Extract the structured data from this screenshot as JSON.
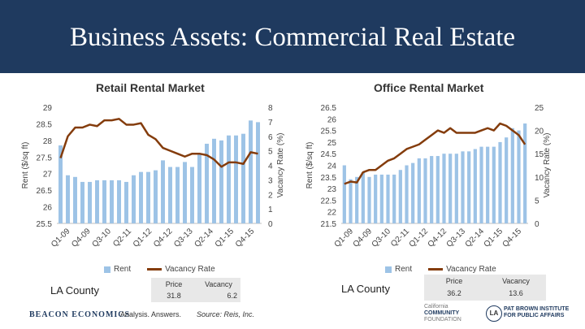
{
  "page": {
    "title": "Business Assets: Commercial Real Estate"
  },
  "legend": {
    "rent_label": "Rent",
    "vacancy_label": "Vacancy Rate"
  },
  "colors": {
    "bar": "#9dc3e6",
    "line": "#843c0c",
    "header": "#1f3a5f"
  },
  "chart_data": [
    {
      "type": "bar+line",
      "title": "Retail Rental Market",
      "ylabel": "Rent ($/sq ft)",
      "y2label": "Vacancy Rate (%)",
      "ylim": [
        25.5,
        29
      ],
      "y2lim": [
        0,
        8
      ],
      "yticks": [
        "29",
        "28.5",
        "28",
        "27.5",
        "27",
        "26.5",
        "26",
        "25.5"
      ],
      "y2ticks": [
        "8",
        "7",
        "6",
        "5",
        "4",
        "3",
        "2",
        "1",
        "0"
      ],
      "tick_labels": [
        "Q1-09",
        "Q4-09",
        "Q3-10",
        "Q2-11",
        "Q1-12",
        "Q4-12",
        "Q3-13",
        "Q2-14",
        "Q1-15",
        "Q4-15"
      ],
      "series": [
        {
          "name": "Rent",
          "values": [
            27.85,
            26.95,
            26.9,
            26.75,
            26.75,
            26.8,
            26.8,
            26.8,
            26.8,
            26.75,
            26.95,
            27.05,
            27.05,
            27.1,
            27.4,
            27.2,
            27.2,
            27.35,
            27.2,
            27.6,
            27.9,
            28.05,
            28.0,
            28.15,
            28.15,
            28.2,
            28.6,
            28.55
          ]
        },
        {
          "name": "Vacancy Rate",
          "values": [
            4.5,
            6.0,
            6.6,
            6.6,
            6.8,
            6.7,
            7.1,
            7.1,
            7.2,
            6.8,
            6.8,
            6.9,
            6.1,
            5.8,
            5.2,
            5.0,
            4.8,
            4.6,
            4.8,
            4.8,
            4.7,
            4.4,
            3.9,
            4.2,
            4.2,
            4.1,
            4.9,
            4.8
          ]
        }
      ]
    },
    {
      "type": "bar+line",
      "title": "Office Rental Market",
      "ylabel": "Rent ($/sq ft)",
      "y2label": "Vacancy Rate (%)",
      "ylim": [
        21.5,
        26.5
      ],
      "y2lim": [
        0,
        25
      ],
      "yticks": [
        "26.5",
        "26",
        "25.5",
        "25",
        "24.5",
        "24",
        "23.5",
        "23",
        "22.5",
        "22",
        "21.5"
      ],
      "y2ticks": [
        "25",
        "20",
        "15",
        "10",
        "5",
        "0"
      ],
      "tick_labels": [
        "Q1-09",
        "Q4-09",
        "Q3-10",
        "Q2-11",
        "Q1-12",
        "Q4-12",
        "Q3-13",
        "Q2-14",
        "Q1-15",
        "Q4-15"
      ],
      "series": [
        {
          "name": "Rent",
          "values": [
            24.0,
            23.4,
            23.5,
            23.7,
            23.5,
            23.6,
            23.6,
            23.6,
            23.6,
            23.8,
            24.0,
            24.1,
            24.3,
            24.3,
            24.4,
            24.4,
            24.5,
            24.5,
            24.5,
            24.6,
            24.6,
            24.7,
            24.8,
            24.8,
            24.8,
            25.0,
            25.2,
            25.6,
            25.5,
            25.8
          ]
        },
        {
          "name": "Vacancy Rate",
          "values": [
            8.5,
            9.0,
            8.8,
            11.0,
            11.5,
            11.5,
            12.5,
            13.5,
            14.0,
            15.0,
            16.0,
            16.5,
            17.0,
            18.0,
            19.0,
            20.0,
            19.5,
            20.5,
            19.5,
            19.5,
            19.5,
            19.5,
            20.0,
            20.5,
            20.0,
            21.5,
            21.0,
            20.0,
            19.0,
            17.0
          ]
        }
      ]
    }
  ],
  "retail": {
    "county": "LA County",
    "price_label": "Price",
    "price_value": "31.8",
    "vacancy_label": "Vacancy",
    "vacancy_value": "6.2"
  },
  "office": {
    "county": "LA County",
    "price_label": "Price",
    "price_value": "36.2",
    "vacancy_label": "Vacancy",
    "vacancy_value": "13.6"
  },
  "footer": {
    "beacon": "BEACON ECONOMICS",
    "tagline": "Analysis. Answers.",
    "source": "Source: Reis, Inc.",
    "ccf_line1": "California",
    "ccf_line2": "COMMUNITY",
    "ccf_line3": "FOUNDATION",
    "pb_line1": "PAT BROWN INSTITUTE",
    "pb_line2": "FOR PUBLIC AFFAIRS",
    "pb_mark": "LA"
  }
}
